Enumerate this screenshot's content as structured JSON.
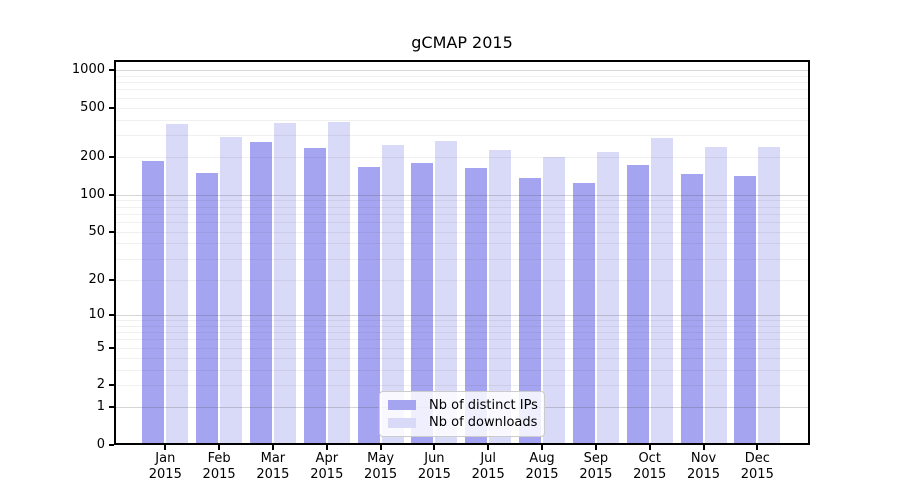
{
  "chart_data": {
    "type": "bar",
    "title": "gCMAP 2015",
    "categories": [
      "Jan 2015",
      "Feb 2015",
      "Mar 2015",
      "Apr 2015",
      "May 2015",
      "Jun 2015",
      "Jul 2015",
      "Aug 2015",
      "Sep 2015",
      "Oct 2015",
      "Nov 2015",
      "Dec 2015"
    ],
    "series": [
      {
        "name": "Nb of distinct IPs",
        "color": "#a4a4f0",
        "values": [
          185,
          148,
          263,
          236,
          168,
          178,
          165,
          135,
          124,
          172,
          146,
          140
        ]
      },
      {
        "name": "Nb of downloads",
        "color": "#d9d9f8",
        "values": [
          370,
          290,
          375,
          385,
          250,
          270,
          228,
          200,
          222,
          283,
          242,
          242
        ]
      }
    ],
    "xlabel": "",
    "ylabel": "",
    "yscale": "log1p",
    "yticks": [
      0,
      1,
      2,
      5,
      10,
      20,
      50,
      100,
      200,
      500,
      1000
    ],
    "ylim": [
      0,
      1100
    ],
    "grid": "major and minor horizontal gridlines drawn over bars",
    "legend_position": "inside lower-center"
  },
  "colors": {
    "ips_bar": "#a4a4f0",
    "downloads_bar": "#d9d9f8",
    "axis": "#000000",
    "grid_major": "#d3d3d3",
    "grid_minor": "#eeeeee",
    "legend_border": "#cccccc",
    "background": "#ffffff"
  }
}
